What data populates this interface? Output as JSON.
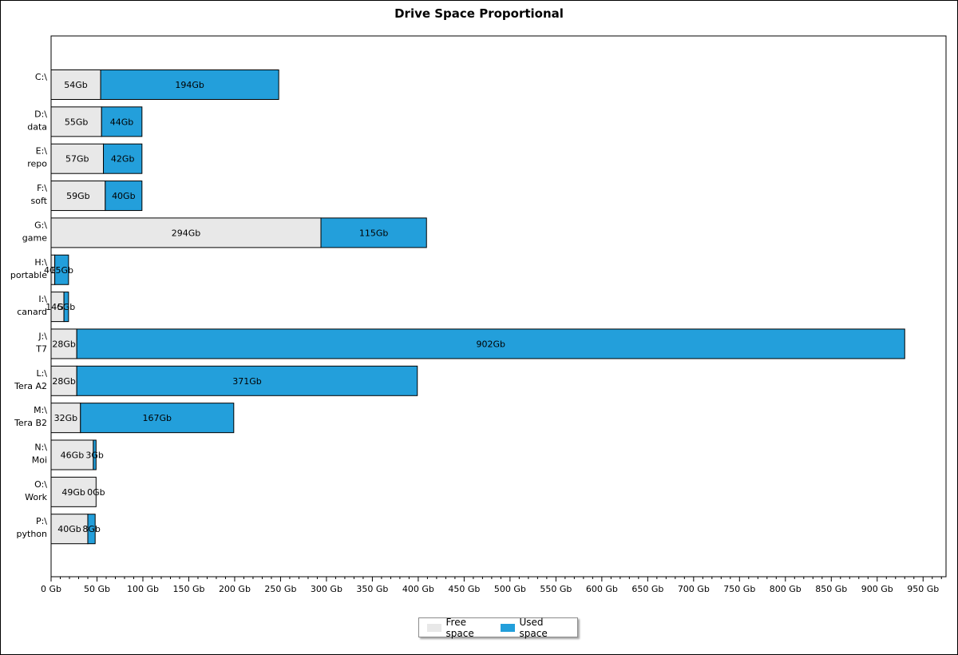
{
  "chart_data": {
    "type": "bar",
    "orientation": "horizontal",
    "stacked": true,
    "title": "Drive Space Proportional",
    "xlim": [
      0,
      975
    ],
    "x_ticks": [
      "0 Gb",
      "50 Gb",
      "100 Gb",
      "150 Gb",
      "200 Gb",
      "250 Gb",
      "300 Gb",
      "350 Gb",
      "400 Gb",
      "450 Gb",
      "500 Gb",
      "550 Gb",
      "600 Gb",
      "650 Gb",
      "700 Gb",
      "750 Gb",
      "800 Gb",
      "850 Gb",
      "900 Gb",
      "950 Gb"
    ],
    "categories": [
      {
        "drive": "C:\\",
        "name": ""
      },
      {
        "drive": "D:\\",
        "name": "data"
      },
      {
        "drive": "E:\\",
        "name": "repo"
      },
      {
        "drive": "F:\\",
        "name": "soft"
      },
      {
        "drive": "G:\\",
        "name": "game"
      },
      {
        "drive": "H:\\",
        "name": "portable"
      },
      {
        "drive": "I:\\",
        "name": "canard"
      },
      {
        "drive": "J:\\",
        "name": "T7"
      },
      {
        "drive": "L:\\",
        "name": "Tera A2"
      },
      {
        "drive": "M:\\",
        "name": "Tera B2"
      },
      {
        "drive": "N:\\",
        "name": "Moi"
      },
      {
        "drive": "O:\\",
        "name": "Work"
      },
      {
        "drive": "P:\\",
        "name": "python"
      }
    ],
    "series": [
      {
        "name": "Free space",
        "color": "#e8e8e8",
        "values": [
          54,
          55,
          57,
          59,
          294,
          4,
          14,
          28,
          28,
          32,
          46,
          49,
          40
        ],
        "labels": [
          "54Gb",
          "55Gb",
          "57Gb",
          "59Gb",
          "294Gb",
          "4Gb",
          "14Gb",
          "28Gb",
          "28Gb",
          "32Gb",
          "46Gb",
          "49Gb",
          "40Gb"
        ]
      },
      {
        "name": "Used space",
        "color": "#239fdb",
        "values": [
          194,
          44,
          42,
          40,
          115,
          15,
          5,
          902,
          371,
          167,
          3,
          0,
          8
        ],
        "labels": [
          "194Gb",
          "44Gb",
          "42Gb",
          "40Gb",
          "115Gb",
          "15Gb",
          "5Gb",
          "902Gb",
          "371Gb",
          "167Gb",
          "3Gb",
          "0Gb",
          "8Gb"
        ]
      }
    ],
    "legend": {
      "placement": "bottom-center",
      "items": [
        "Free space",
        "Used space"
      ]
    },
    "grid": false
  }
}
